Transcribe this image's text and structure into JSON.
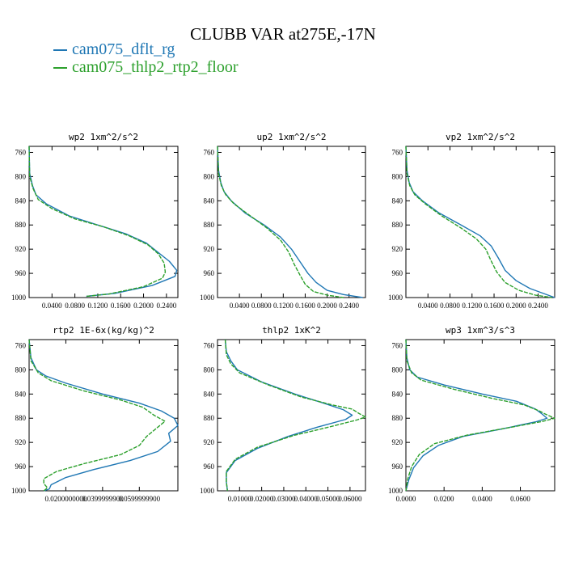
{
  "figure": {
    "title": "CLUBB VAR at275E,-17N",
    "legend": [
      {
        "label": "cam075_dflt_rg",
        "color": "#1f77b4"
      },
      {
        "label": "cam075_thlp2_rtp2_floor",
        "color": "#2ca02c"
      }
    ]
  },
  "chart_data": [
    {
      "type": "line",
      "title": "wp2  1xm^2/s^2",
      "xlim": [
        0,
        0.26
      ],
      "ylim": [
        1000,
        750
      ],
      "y_inverted": true,
      "yticks": [
        760,
        800,
        840,
        880,
        920,
        960,
        1000
      ],
      "xticks": [
        0.04,
        0.08,
        0.12,
        0.16,
        0.2,
        0.24
      ],
      "xtick_labels": [
        "0.0400",
        "0.0800",
        "0.1200",
        "0.1600",
        "0.2000",
        "0.2400"
      ],
      "series": [
        {
          "name": "cam075_dflt_rg",
          "points": [
            [
              0,
              750
            ],
            [
              0.001,
              795
            ],
            [
              0.006,
              815
            ],
            [
              0.012,
              830
            ],
            [
              0.03,
              845
            ],
            [
              0.07,
              865
            ],
            [
              0.12,
              880
            ],
            [
              0.17,
              895
            ],
            [
              0.205,
              910
            ],
            [
              0.225,
              925
            ],
            [
              0.245,
              940
            ],
            [
              0.258,
              955
            ],
            [
              0.255,
              965
            ],
            [
              0.215,
              980
            ],
            [
              0.15,
              993
            ],
            [
              0.1,
              998
            ]
          ]
        },
        {
          "name": "cam075_thlp2_rtp2_floor",
          "points": [
            [
              0,
              750
            ],
            [
              0.001,
              800
            ],
            [
              0.007,
              820
            ],
            [
              0.016,
              838
            ],
            [
              0.04,
              853
            ],
            [
              0.08,
              870
            ],
            [
              0.13,
              883
            ],
            [
              0.175,
              898
            ],
            [
              0.208,
              913
            ],
            [
              0.226,
              928
            ],
            [
              0.236,
              943
            ],
            [
              0.238,
              958
            ],
            [
              0.233,
              968
            ],
            [
              0.2,
              982
            ],
            [
              0.14,
              994
            ],
            [
              0.1,
              998
            ]
          ]
        }
      ]
    },
    {
      "type": "line",
      "title": "up2  1xm^2/s^2",
      "xlim": [
        0,
        0.27
      ],
      "ylim": [
        1000,
        750
      ],
      "y_inverted": true,
      "yticks": [
        760,
        800,
        840,
        880,
        920,
        960,
        1000
      ],
      "xticks": [
        0.04,
        0.08,
        0.12,
        0.16,
        0.2,
        0.24
      ],
      "xtick_labels": [
        "0.0400",
        "0.0800",
        "0.1200",
        "0.1600",
        "0.2000",
        "0.2400"
      ],
      "series": [
        {
          "name": "cam075_dflt_rg",
          "points": [
            [
              0,
              750
            ],
            [
              0.002,
              790
            ],
            [
              0.006,
              810
            ],
            [
              0.012,
              825
            ],
            [
              0.025,
              840
            ],
            [
              0.05,
              860
            ],
            [
              0.085,
              880
            ],
            [
              0.115,
              900
            ],
            [
              0.135,
              920
            ],
            [
              0.15,
              940
            ],
            [
              0.165,
              960
            ],
            [
              0.18,
              975
            ],
            [
              0.2,
              988
            ],
            [
              0.23,
              995
            ],
            [
              0.265,
              1000
            ]
          ]
        },
        {
          "name": "cam075_thlp2_rtp2_floor",
          "points": [
            [
              0,
              750
            ],
            [
              0.002,
              795
            ],
            [
              0.007,
              815
            ],
            [
              0.015,
              830
            ],
            [
              0.03,
              845
            ],
            [
              0.06,
              865
            ],
            [
              0.09,
              885
            ],
            [
              0.115,
              905
            ],
            [
              0.13,
              925
            ],
            [
              0.14,
              945
            ],
            [
              0.15,
              962
            ],
            [
              0.16,
              978
            ],
            [
              0.175,
              990
            ],
            [
              0.2,
              996
            ],
            [
              0.23,
              1000
            ]
          ]
        }
      ]
    },
    {
      "type": "line",
      "title": "vp2  1xm^2/s^2",
      "xlim": [
        0,
        0.27
      ],
      "ylim": [
        1000,
        750
      ],
      "y_inverted": true,
      "yticks": [
        760,
        800,
        840,
        880,
        920,
        960,
        1000
      ],
      "xticks": [
        0.04,
        0.08,
        0.12,
        0.16,
        0.2,
        0.24
      ],
      "xtick_labels": [
        "0.0400",
        "0.0800",
        "0.1200",
        "0.1600",
        "0.2000",
        "0.2400"
      ],
      "series": [
        {
          "name": "cam075_dflt_rg",
          "points": [
            [
              0,
              750
            ],
            [
              0.002,
              790
            ],
            [
              0.006,
              810
            ],
            [
              0.013,
              825
            ],
            [
              0.03,
              840
            ],
            [
              0.06,
              860
            ],
            [
              0.1,
              880
            ],
            [
              0.135,
              898
            ],
            [
              0.155,
              915
            ],
            [
              0.168,
              935
            ],
            [
              0.18,
              955
            ],
            [
              0.2,
              972
            ],
            [
              0.225,
              985
            ],
            [
              0.255,
              995
            ],
            [
              0.27,
              1000
            ]
          ]
        },
        {
          "name": "cam075_thlp2_rtp2_floor",
          "points": [
            [
              0,
              750
            ],
            [
              0.002,
              795
            ],
            [
              0.007,
              815
            ],
            [
              0.016,
              830
            ],
            [
              0.035,
              845
            ],
            [
              0.065,
              865
            ],
            [
              0.1,
              885
            ],
            [
              0.128,
              903
            ],
            [
              0.145,
              920
            ],
            [
              0.155,
              940
            ],
            [
              0.165,
              958
            ],
            [
              0.18,
              975
            ],
            [
              0.205,
              988
            ],
            [
              0.235,
              996
            ],
            [
              0.265,
              1000
            ]
          ]
        }
      ]
    },
    {
      "type": "line",
      "title": "rtp2  1E-6x(kg/kg)^2",
      "xlim": [
        0,
        0.081
      ],
      "ylim": [
        1000,
        750
      ],
      "y_inverted": true,
      "yticks": [
        760,
        800,
        840,
        880,
        920,
        960,
        1000
      ],
      "xticks": [
        0.02,
        0.04,
        0.06
      ],
      "xtick_labels": [
        "0.0200000000",
        "0.0399999900",
        "0.0599999900"
      ],
      "series": [
        {
          "name": "cam075_dflt_rg",
          "points": [
            [
              0,
              750
            ],
            [
              0.001,
              780
            ],
            [
              0.004,
              800
            ],
            [
              0.009,
              810
            ],
            [
              0.02,
              822
            ],
            [
              0.04,
              840
            ],
            [
              0.06,
              855
            ],
            [
              0.072,
              868
            ],
            [
              0.079,
              880
            ],
            [
              0.081,
              892
            ],
            [
              0.076,
              905
            ],
            [
              0.077,
              918
            ],
            [
              0.07,
              935
            ],
            [
              0.055,
              950
            ],
            [
              0.035,
              965
            ],
            [
              0.02,
              978
            ],
            [
              0.012,
              990
            ],
            [
              0.011,
              997
            ],
            [
              0.008,
              1000
            ]
          ]
        },
        {
          "name": "cam075_thlp2_rtp2_floor",
          "points": [
            [
              0,
              750
            ],
            [
              0.001,
              785
            ],
            [
              0.005,
              805
            ],
            [
              0.012,
              818
            ],
            [
              0.03,
              835
            ],
            [
              0.05,
              850
            ],
            [
              0.062,
              862
            ],
            [
              0.068,
              875
            ],
            [
              0.074,
              885
            ],
            [
              0.07,
              895
            ],
            [
              0.064,
              910
            ],
            [
              0.06,
              925
            ],
            [
              0.05,
              940
            ],
            [
              0.03,
              955
            ],
            [
              0.015,
              968
            ],
            [
              0.008,
              980
            ],
            [
              0.008,
              988
            ],
            [
              0.01,
              995
            ],
            [
              0.008,
              1000
            ]
          ]
        }
      ]
    },
    {
      "type": "line",
      "title": "thlp2  1xK^2",
      "xlim": [
        0,
        0.067
      ],
      "ylim": [
        1000,
        750
      ],
      "y_inverted": true,
      "yticks": [
        760,
        800,
        840,
        880,
        920,
        960,
        1000
      ],
      "xticks": [
        0.01,
        0.02,
        0.03,
        0.04,
        0.05,
        0.06
      ],
      "xtick_labels": [
        "0.01000",
        "0.02000",
        "0.03000",
        "0.04000",
        "0.05000",
        "0.06000"
      ],
      "series": [
        {
          "name": "cam075_dflt_rg",
          "points": [
            [
              0.0035,
              750
            ],
            [
              0.004,
              770
            ],
            [
              0.006,
              785
            ],
            [
              0.009,
              800
            ],
            [
              0.02,
              820
            ],
            [
              0.035,
              840
            ],
            [
              0.048,
              855
            ],
            [
              0.057,
              866
            ],
            [
              0.061,
              875
            ],
            [
              0.058,
              882
            ],
            [
              0.045,
              895
            ],
            [
              0.032,
              910
            ],
            [
              0.018,
              930
            ],
            [
              0.008,
              950
            ],
            [
              0.004,
              970
            ],
            [
              0.004,
              985
            ],
            [
              0.0045,
              1000
            ]
          ]
        },
        {
          "name": "cam075_thlp2_rtp2_floor",
          "points": [
            [
              0.0035,
              750
            ],
            [
              0.004,
              775
            ],
            [
              0.006,
              790
            ],
            [
              0.01,
              805
            ],
            [
              0.023,
              825
            ],
            [
              0.038,
              845
            ],
            [
              0.052,
              858
            ],
            [
              0.061,
              865
            ],
            [
              0.064,
              872
            ],
            [
              0.067,
              878
            ],
            [
              0.063,
              883
            ],
            [
              0.05,
              895
            ],
            [
              0.035,
              908
            ],
            [
              0.018,
              928
            ],
            [
              0.008,
              948
            ],
            [
              0.004,
              968
            ],
            [
              0.004,
              985
            ],
            [
              0.0045,
              1000
            ]
          ]
        }
      ]
    },
    {
      "type": "line",
      "title": "wp3  1xm^3/s^3",
      "xlim": [
        0,
        0.078
      ],
      "ylim": [
        1000,
        750
      ],
      "y_inverted": true,
      "yticks": [
        760,
        800,
        840,
        880,
        920,
        960,
        1000
      ],
      "xticks": [
        0.0,
        0.02,
        0.04,
        0.06
      ],
      "xtick_labels": [
        "0.0000",
        "0.0200",
        "0.0400",
        "0.0600"
      ],
      "series": [
        {
          "name": "cam075_dflt_rg",
          "points": [
            [
              0,
              750
            ],
            [
              0.0005,
              780
            ],
            [
              0.002,
              800
            ],
            [
              0.006,
              812
            ],
            [
              0.02,
              825
            ],
            [
              0.04,
              840
            ],
            [
              0.058,
              852
            ],
            [
              0.068,
              865
            ],
            [
              0.071,
              872
            ],
            [
              0.074,
              880
            ],
            [
              0.068,
              886
            ],
            [
              0.05,
              898
            ],
            [
              0.03,
              910
            ],
            [
              0.017,
              925
            ],
            [
              0.009,
              942
            ],
            [
              0.004,
              962
            ],
            [
              0.0015,
              982
            ],
            [
              0,
              1000
            ]
          ]
        },
        {
          "name": "cam075_thlp2_rtp2_floor",
          "points": [
            [
              0,
              750
            ],
            [
              0.0005,
              785
            ],
            [
              0.003,
              805
            ],
            [
              0.008,
              817
            ],
            [
              0.025,
              832
            ],
            [
              0.045,
              847
            ],
            [
              0.062,
              858
            ],
            [
              0.07,
              868
            ],
            [
              0.073,
              873
            ],
            [
              0.078,
              880
            ],
            [
              0.072,
              885
            ],
            [
              0.055,
              895
            ],
            [
              0.032,
              908
            ],
            [
              0.015,
              922
            ],
            [
              0.007,
              940
            ],
            [
              0.003,
              960
            ],
            [
              0.001,
              980
            ],
            [
              0,
              1000
            ]
          ]
        }
      ]
    }
  ]
}
